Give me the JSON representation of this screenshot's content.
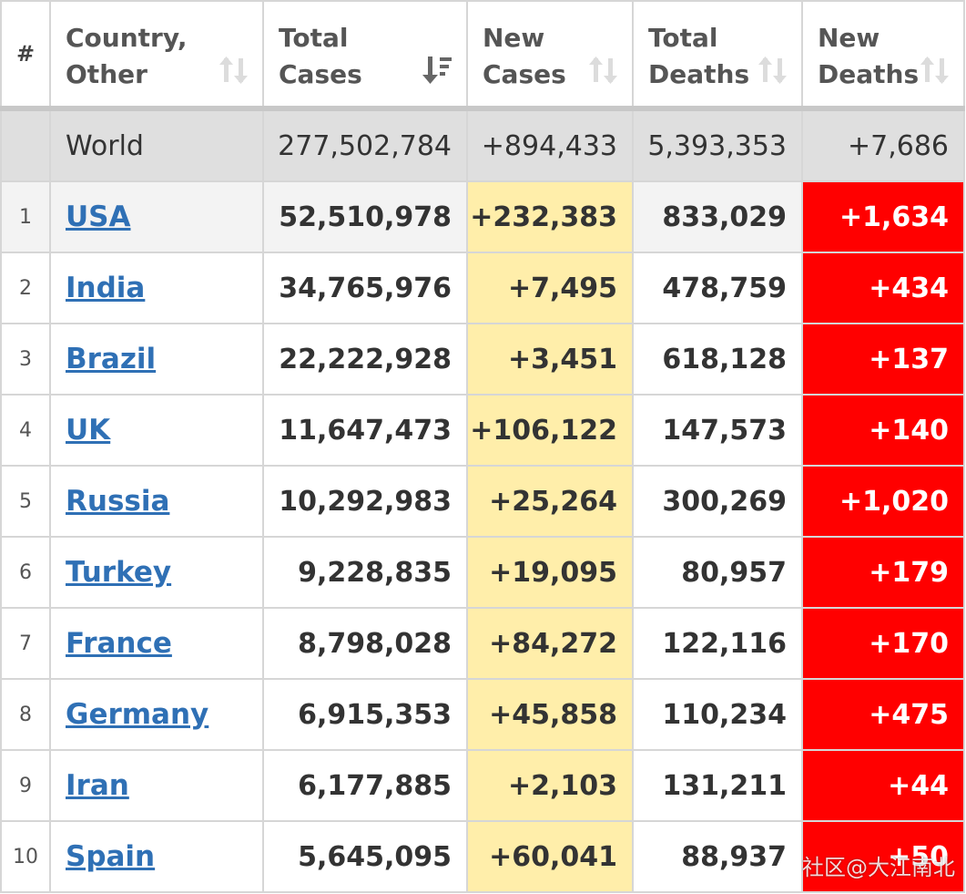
{
  "header": {
    "num": "#",
    "country": [
      "Country,",
      "Other"
    ],
    "total_cases": [
      "Total",
      "Cases"
    ],
    "new_cases": [
      "New",
      "Cases"
    ],
    "total_deaths": [
      "Total",
      "Deaths"
    ],
    "new_deaths": [
      "New",
      "Deaths"
    ]
  },
  "world": {
    "name": "World",
    "total_cases": "277,502,784",
    "new_cases": "+894,433",
    "total_deaths": "5,393,353",
    "new_deaths": "+7,686"
  },
  "rows": [
    {
      "num": "1",
      "country": "USA",
      "total_cases": "52,510,978",
      "new_cases": "+232,383",
      "total_deaths": "833,029",
      "new_deaths": "+1,634"
    },
    {
      "num": "2",
      "country": "India",
      "total_cases": "34,765,976",
      "new_cases": "+7,495",
      "total_deaths": "478,759",
      "new_deaths": "+434"
    },
    {
      "num": "3",
      "country": "Brazil",
      "total_cases": "22,222,928",
      "new_cases": "+3,451",
      "total_deaths": "618,128",
      "new_deaths": "+137"
    },
    {
      "num": "4",
      "country": "UK",
      "total_cases": "11,647,473",
      "new_cases": "+106,122",
      "total_deaths": "147,573",
      "new_deaths": "+140"
    },
    {
      "num": "5",
      "country": "Russia",
      "total_cases": "10,292,983",
      "new_cases": "+25,264",
      "total_deaths": "300,269",
      "new_deaths": "+1,020"
    },
    {
      "num": "6",
      "country": "Turkey",
      "total_cases": "9,228,835",
      "new_cases": "+19,095",
      "total_deaths": "80,957",
      "new_deaths": "+179"
    },
    {
      "num": "7",
      "country": "France",
      "total_cases": "8,798,028",
      "new_cases": "+84,272",
      "total_deaths": "122,116",
      "new_deaths": "+170"
    },
    {
      "num": "8",
      "country": "Germany",
      "total_cases": "6,915,353",
      "new_cases": "+45,858",
      "total_deaths": "110,234",
      "new_deaths": "+475"
    },
    {
      "num": "9",
      "country": "Iran",
      "total_cases": "6,177,885",
      "new_cases": "+2,103",
      "total_deaths": "131,211",
      "new_deaths": "+44"
    },
    {
      "num": "10",
      "country": "Spain",
      "total_cases": "5,645,095",
      "new_cases": "+60,041",
      "total_deaths": "88,937",
      "new_deaths": "+50"
    }
  ],
  "watermark": "社区@大江南北",
  "colors": {
    "link": "#2f70b5",
    "new_cases_bg": "#ffeeaa",
    "new_deaths_bg": "#ff0000",
    "world_bg": "#dfdfdf"
  },
  "icons": {
    "sort": "sort-arrows-icon",
    "sort_active": "sort-desc-active-icon"
  }
}
